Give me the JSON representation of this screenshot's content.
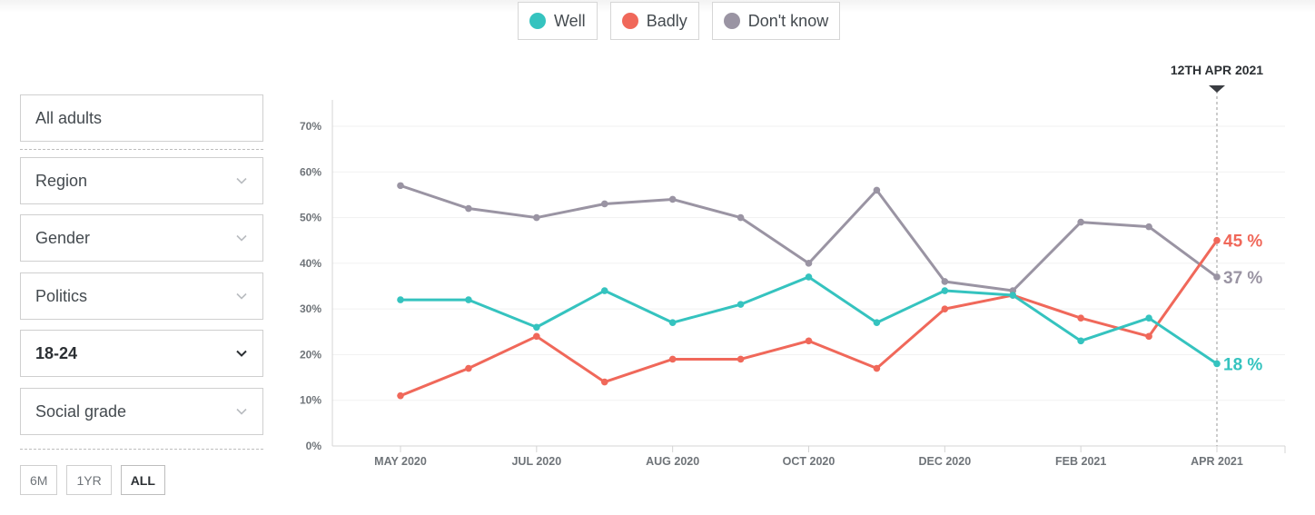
{
  "legend": [
    {
      "label": "Well",
      "color": "#35c3bf"
    },
    {
      "label": "Badly",
      "color": "#f0685a"
    },
    {
      "label": "Don't know",
      "color": "#9a94a3"
    }
  ],
  "filters": {
    "audience": "All adults",
    "region": "Region",
    "gender": "Gender",
    "politics": "Politics",
    "age": "18-24",
    "social_grade": "Social grade"
  },
  "periods": [
    {
      "label": "6M",
      "active": false
    },
    {
      "label": "1YR",
      "active": false
    },
    {
      "label": "ALL",
      "active": true
    }
  ],
  "chart_data": {
    "type": "line",
    "date_marker": "12TH APR 2021",
    "y_ticks": [
      "0%",
      "10%",
      "20%",
      "30%",
      "40%",
      "50%",
      "60%",
      "70%"
    ],
    "ylim": [
      0,
      70
    ],
    "x_ticks": [
      "MAY 2020",
      "JUL 2020",
      "AUG 2020",
      "OCT 2020",
      "DEC 2020",
      "FEB 2021",
      "APR 2021"
    ],
    "x_tick_index": [
      0,
      2,
      4,
      6,
      8,
      10,
      12
    ],
    "grid": true,
    "series": [
      {
        "name": "Well",
        "color": "#35c3bf",
        "values": [
          32,
          32,
          26,
          34,
          27,
          31,
          37,
          27,
          34,
          33,
          23,
          28,
          18
        ],
        "end_label": "18 %"
      },
      {
        "name": "Badly",
        "color": "#f0685a",
        "values": [
          11,
          17,
          24,
          14,
          19,
          19,
          23,
          17,
          30,
          33,
          28,
          24,
          45
        ],
        "end_label": "45 %"
      },
      {
        "name": "Don't know",
        "color": "#9a94a3",
        "values": [
          57,
          52,
          50,
          53,
          54,
          50,
          40,
          56,
          36,
          34,
          49,
          48,
          37
        ],
        "end_label": "37 %"
      }
    ]
  }
}
